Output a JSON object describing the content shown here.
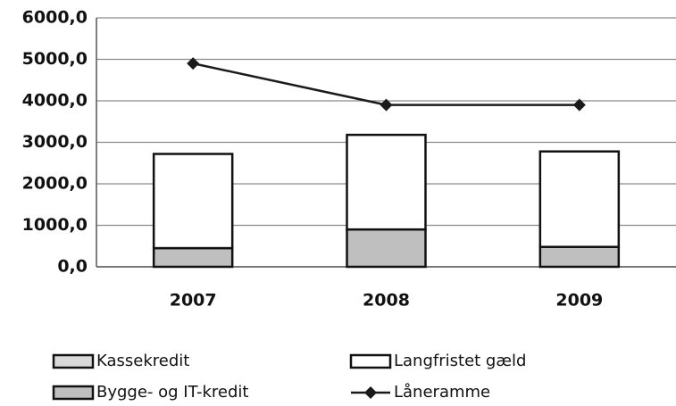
{
  "chart_data": {
    "type": "bar",
    "categories": [
      "2007",
      "2008",
      "2009"
    ],
    "series": [
      {
        "name": "Kassekredit",
        "color": "#d9d9d9",
        "values": [
          0,
          0,
          0
        ]
      },
      {
        "name": "Bygge- og IT-kredit",
        "color": "#bfbfbf",
        "values": [
          450,
          900,
          480
        ]
      },
      {
        "name": "Langfristet gæld",
        "color": "#ffffff",
        "values": [
          2270,
          2280,
          2300
        ]
      },
      {
        "name": "Låneramme",
        "type": "line",
        "color": "#1a1a1a",
        "values": [
          4900,
          3900,
          3900
        ]
      }
    ],
    "ylim": [
      0,
      6000
    ],
    "yticks": [
      {
        "value": 0,
        "label": "0,0"
      },
      {
        "value": 1000,
        "label": "1000,0"
      },
      {
        "value": 2000,
        "label": "2000,0"
      },
      {
        "value": 3000,
        "label": "3000,0"
      },
      {
        "value": 4000,
        "label": "4000,0"
      },
      {
        "value": 5000,
        "label": "5000,0"
      },
      {
        "value": 6000,
        "label": "6000,0"
      }
    ],
    "grid": true,
    "legend": "bottom"
  }
}
